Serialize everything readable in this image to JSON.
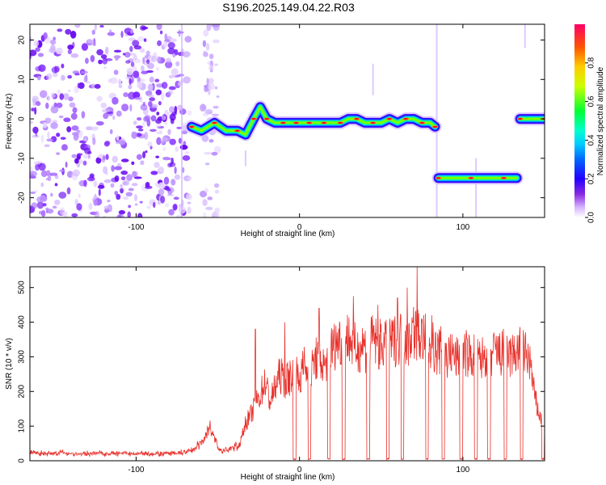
{
  "figure_title": "S196.2025.149.04.22.R03",
  "chart_data": [
    {
      "type": "heatmap",
      "title": "S196.2025.149.04.22.R03",
      "xlabel": "Height of straight line (km)",
      "ylabel": "Frequency (Hz)",
      "xlim": [
        -165,
        150
      ],
      "ylim": [
        -25,
        24
      ],
      "x_ticks": [
        -100,
        0,
        100
      ],
      "y_ticks": [
        -20,
        -10,
        0,
        10,
        20
      ],
      "colorbar": {
        "label": "Normalized spectral amplitude",
        "range": [
          0,
          1
        ],
        "ticks": [
          0.0,
          0.2,
          0.4,
          0.6,
          0.8
        ],
        "colormap": [
          "#ffffff",
          "#b388ff",
          "#7a00ff",
          "#0000ff",
          "#00aaff",
          "#00ffcc",
          "#00ff00",
          "#ffff00",
          "#ff8000",
          "#ff0000",
          "#ff0066"
        ]
      },
      "regions": [
        {
          "description": "noise",
          "x_range": [
            -165,
            -67
          ],
          "freq_range": [
            -25,
            24
          ],
          "amplitude": 0.12
        },
        {
          "description": "noise",
          "x_range": [
            -60,
            -50
          ],
          "freq_range": [
            -25,
            24
          ],
          "amplitude": 0.05
        }
      ],
      "tracks": [
        {
          "x_range": [
            -67,
            83
          ],
          "points": [
            [
              -66,
              -2
            ],
            [
              -60,
              -3
            ],
            [
              -52,
              -1
            ],
            [
              -45,
              -3
            ],
            [
              -38,
              -3
            ],
            [
              -33,
              -4
            ],
            [
              -28,
              0
            ],
            [
              -24,
              3
            ],
            [
              -20,
              0
            ],
            [
              -15,
              -1
            ],
            [
              -10,
              -1
            ],
            [
              -6,
              -1
            ],
            [
              -2,
              -1
            ],
            [
              2,
              -1
            ],
            [
              6,
              -1
            ],
            [
              10,
              -1
            ],
            [
              15,
              -1
            ],
            [
              20,
              -1
            ],
            [
              25,
              -1
            ],
            [
              30,
              0
            ],
            [
              35,
              0
            ],
            [
              40,
              -1
            ],
            [
              45,
              -1
            ],
            [
              50,
              -1
            ],
            [
              55,
              0
            ],
            [
              60,
              -1
            ],
            [
              65,
              0
            ],
            [
              70,
              0
            ],
            [
              75,
              -1
            ],
            [
              80,
              -1
            ],
            [
              83,
              -2
            ]
          ]
        },
        {
          "x_range": [
            85,
            133
          ],
          "points": [
            [
              85,
              -15
            ],
            [
              95,
              -15
            ],
            [
              105,
              -15
            ],
            [
              115,
              -15
            ],
            [
              125,
              -15
            ],
            [
              133,
              -15
            ]
          ]
        },
        {
          "x_range": [
            135,
            150
          ],
          "points": [
            [
              135,
              0
            ],
            [
              143,
              0
            ],
            [
              150,
              0
            ]
          ]
        }
      ]
    },
    {
      "type": "line",
      "xlabel": "Height of straight line (km)",
      "ylabel": "SNR (10 * v/v)",
      "xlim": [
        -165,
        150
      ],
      "ylim": [
        0,
        560
      ],
      "x_ticks": [
        -100,
        0,
        100
      ],
      "y_ticks": [
        0,
        100,
        200,
        300,
        400,
        500
      ],
      "color": "#e8302a",
      "series": [
        {
          "values": [
            [
              -165,
              20
            ],
            [
              -155,
              15
            ],
            [
              -145,
              18
            ],
            [
              -135,
              14
            ],
            [
              -125,
              17
            ],
            [
              -115,
              16
            ],
            [
              -105,
              15
            ],
            [
              -95,
              17
            ],
            [
              -85,
              15
            ],
            [
              -75,
              16
            ],
            [
              -67,
              22
            ],
            [
              -60,
              45
            ],
            [
              -55,
              100
            ],
            [
              -52,
              60
            ],
            [
              -48,
              20
            ],
            [
              -42,
              30
            ],
            [
              -37,
              40
            ],
            [
              -33,
              110
            ],
            [
              -30,
              130
            ],
            [
              -27,
              160
            ],
            [
              -24,
              190
            ],
            [
              -21,
              230
            ],
            [
              -18,
              170
            ],
            [
              -15,
              210
            ],
            [
              -12,
              250
            ],
            [
              -9,
              230
            ],
            [
              -6,
              240
            ],
            [
              -3,
              260
            ],
            [
              0,
              230
            ],
            [
              3,
              280
            ],
            [
              6,
              230
            ],
            [
              9,
              290
            ],
            [
              12,
              300
            ],
            [
              15,
              270
            ],
            [
              18,
              310
            ],
            [
              21,
              330
            ],
            [
              24,
              350
            ],
            [
              27,
              340
            ],
            [
              30,
              360
            ],
            [
              33,
              330
            ],
            [
              36,
              320
            ],
            [
              39,
              340
            ],
            [
              42,
              310
            ],
            [
              45,
              360
            ],
            [
              48,
              330
            ],
            [
              51,
              340
            ],
            [
              54,
              330
            ],
            [
              57,
              345
            ],
            [
              60,
              350
            ],
            [
              63,
              370
            ],
            [
              66,
              335
            ],
            [
              69,
              380
            ],
            [
              72,
              365
            ],
            [
              75,
              355
            ],
            [
              78,
              345
            ],
            [
              81,
              335
            ],
            [
              84,
              310
            ],
            [
              87,
              320
            ],
            [
              90,
              300
            ],
            [
              93,
              310
            ],
            [
              96,
              295
            ],
            [
              99,
              300
            ],
            [
              102,
              310
            ],
            [
              105,
              300
            ],
            [
              108,
              305
            ],
            [
              111,
              290
            ],
            [
              114,
              310
            ],
            [
              117,
              300
            ],
            [
              120,
              315
            ],
            [
              123,
              305
            ],
            [
              126,
              320
            ],
            [
              129,
              300
            ],
            [
              132,
              310
            ],
            [
              135,
              320
            ],
            [
              138,
              310
            ],
            [
              141,
              290
            ],
            [
              144,
              180
            ],
            [
              147,
              130
            ],
            [
              150,
              90
            ]
          ]
        }
      ],
      "spikes": [
        [
          -27,
          380
        ],
        [
          -9,
          400
        ],
        [
          12,
          440
        ],
        [
          33,
          475
        ],
        [
          48,
          450
        ],
        [
          60,
          470
        ],
        [
          66,
          500
        ],
        [
          72,
          560
        ],
        [
          81,
          420
        ]
      ],
      "dropouts": [
        -3,
        6,
        18,
        27,
        42,
        54,
        63,
        78,
        88,
        99,
        108,
        116,
        126,
        136,
        149
      ]
    }
  ]
}
